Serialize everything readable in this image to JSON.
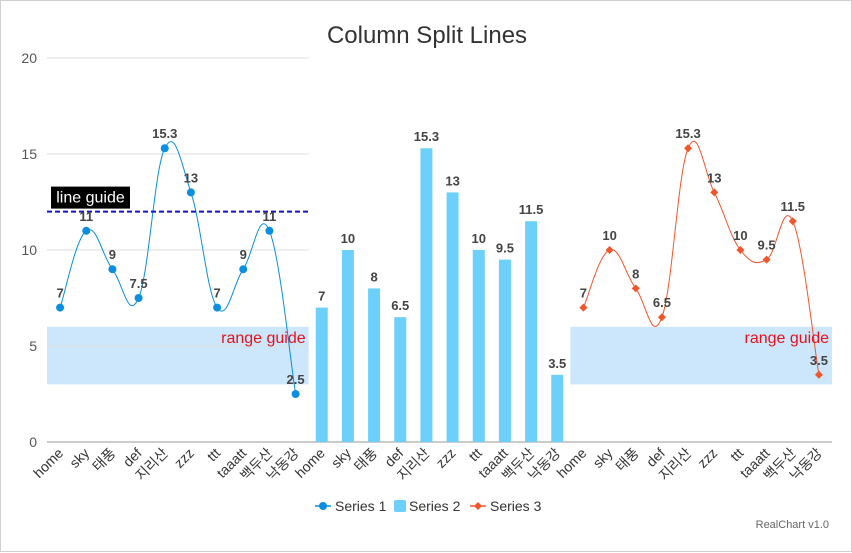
{
  "colors": {
    "series1": "#0b8ee0",
    "series2": "#6dd0fb",
    "series3": "#f0552c",
    "range_fill": "#cce6fb",
    "guide_line": "#1515c8",
    "grid": "#dddddd"
  },
  "chart_data": {
    "type": "line",
    "title": "Column Split Lines",
    "ylim": [
      0,
      20
    ],
    "yticks": [
      0,
      5,
      10,
      15,
      20
    ],
    "grid": true,
    "legend_position": "bottom",
    "categories": [
      "home",
      "sky",
      "태풍",
      "def",
      "지리산",
      "zzz",
      "ttt",
      "taaatt",
      "백두산",
      "낙동강"
    ],
    "series": [
      {
        "name": "Series 1",
        "type": "line",
        "values": [
          7,
          11,
          9,
          7.5,
          15.3,
          13,
          7,
          9,
          11,
          2.5
        ]
      },
      {
        "name": "Series 2",
        "type": "bar",
        "values": [
          7,
          10,
          8,
          6.5,
          15.3,
          13,
          10,
          9.5,
          11.5,
          3.5
        ]
      },
      {
        "name": "Series 3",
        "type": "line",
        "values": [
          7,
          10,
          8,
          6.5,
          15.3,
          13,
          10,
          9.5,
          11.5,
          3.5
        ]
      }
    ],
    "data_labels": {
      "series1": [
        "7",
        "11",
        "9",
        "7.5",
        "15.3",
        "13",
        "7",
        "9",
        "11",
        "2.5"
      ],
      "series2": [
        "7",
        "10",
        "8",
        "6.5",
        "15.3",
        "13",
        "10",
        "9.5",
        "11.5",
        "3.5"
      ],
      "series3": [
        "7",
        "10",
        "8",
        "6.5",
        "15.3",
        "13",
        "10",
        "9.5",
        "11.5",
        "3.5"
      ]
    },
    "guides": {
      "line_guide": {
        "label": "line guide",
        "value": 12,
        "panel": 1
      },
      "range_guides": [
        {
          "label": "range guide",
          "from": 3,
          "to": 6,
          "panel": 1
        },
        {
          "label": "range guide",
          "from": 3,
          "to": 6,
          "panel": 3
        }
      ]
    },
    "credit": "RealChart v1.0"
  }
}
